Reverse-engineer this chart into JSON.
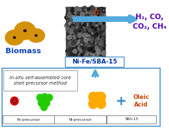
{
  "biomass_text": "Biomass",
  "products_text": "H₂, CO,\nCO₂, CH₄",
  "catalyst_text": "Ni-Fe/SBA-15",
  "method_text": "in-situ self-assembled core\nshell precursor method",
  "delta_symbol": "Δ",
  "oleic_acid_text": "Oleic\nAcid",
  "legend_labels": [
    "Fe-precursor",
    "Ni-precursor",
    "SBA-15"
  ],
  "arrow_color": "#55aadd",
  "products_color": "#5500bb",
  "catalyst_color": "#0033aa",
  "delta_color": "#ee4400",
  "biomass_color": "#1144bb",
  "method_color": "#222222",
  "oleic_color": "#cc4400",
  "ni_color": "#22cc00",
  "sba_color": "#ffaa00",
  "plus_color": "#3388cc",
  "box_edge_color": "#5599cc",
  "fe_dot_color": "#dd0000",
  "fe_inner_color": "#aa0000",
  "tem_bg": "#1a1a1a"
}
